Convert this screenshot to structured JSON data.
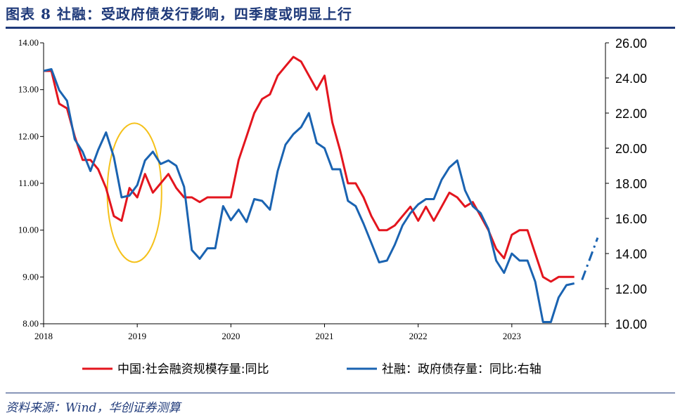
{
  "header": {
    "title": "图表 8   社融：受政府债发行影响，四季度或明显上行"
  },
  "footer": {
    "source": "资料来源：Wind，华创证券测算"
  },
  "chart_data": {
    "type": "line",
    "title": "",
    "x_ticks": [
      "2018",
      "2019",
      "2020",
      "2021",
      "2022",
      "2023"
    ],
    "y_left": {
      "ticks": [
        "8.00",
        "9.00",
        "10.00",
        "11.00",
        "12.00",
        "13.00",
        "14.00"
      ],
      "ylim": [
        8,
        14
      ]
    },
    "y_right": {
      "ticks": [
        "10.00",
        "12.00",
        "14.00",
        "16.00",
        "18.00",
        "20.00",
        "22.00",
        "24.00",
        "26.00"
      ],
      "ylim": [
        10,
        26
      ]
    },
    "x_range": [
      2018.0,
      2024.0
    ],
    "grid": false,
    "legend_position": "bottom",
    "colors": {
      "red": "#e3151e",
      "blue": "#1a63b1",
      "ellipse": "#f5c11a",
      "axis": "#000000"
    },
    "series": [
      {
        "name": "中国:社会融资规模存量:同比",
        "axis": "left",
        "color": "#e3151e",
        "x": [
          2018.0,
          2018.083,
          2018.167,
          2018.25,
          2018.333,
          2018.417,
          2018.5,
          2018.583,
          2018.667,
          2018.75,
          2018.833,
          2018.917,
          2019.0,
          2019.083,
          2019.167,
          2019.25,
          2019.333,
          2019.417,
          2019.5,
          2019.583,
          2019.667,
          2019.75,
          2019.833,
          2019.917,
          2020.0,
          2020.083,
          2020.167,
          2020.25,
          2020.333,
          2020.417,
          2020.5,
          2020.583,
          2020.667,
          2020.75,
          2020.833,
          2020.917,
          2021.0,
          2021.083,
          2021.167,
          2021.25,
          2021.333,
          2021.417,
          2021.5,
          2021.583,
          2021.667,
          2021.75,
          2021.833,
          2021.917,
          2022.0,
          2022.083,
          2022.167,
          2022.25,
          2022.333,
          2022.417,
          2022.5,
          2022.583,
          2022.667,
          2022.75,
          2022.833,
          2022.917,
          2023.0,
          2023.083,
          2023.167,
          2023.25,
          2023.333,
          2023.417,
          2023.5,
          2023.583,
          2023.667
        ],
        "values": [
          13.4,
          13.4,
          12.7,
          12.6,
          12.0,
          11.5,
          11.5,
          11.3,
          10.9,
          10.3,
          10.2,
          10.9,
          10.7,
          11.2,
          10.8,
          11.0,
          11.2,
          10.9,
          10.7,
          10.7,
          10.6,
          10.7,
          10.7,
          10.7,
          10.7,
          11.5,
          12.0,
          12.5,
          12.8,
          12.9,
          13.3,
          13.5,
          13.7,
          13.6,
          13.3,
          13.0,
          13.3,
          12.3,
          11.7,
          11.0,
          11.0,
          10.7,
          10.3,
          10.0,
          10.0,
          10.1,
          10.3,
          10.5,
          10.2,
          10.5,
          10.2,
          10.5,
          10.8,
          10.7,
          10.5,
          10.6,
          10.3,
          10.0,
          9.6,
          9.4,
          9.9,
          10.0,
          10.0,
          9.5,
          9.0,
          8.9,
          9.0,
          9.0,
          9.0
        ]
      },
      {
        "name": "社融：政府债存量：同比:右轴",
        "axis": "right",
        "color": "#1a63b1",
        "x": [
          2018.0,
          2018.083,
          2018.167,
          2018.25,
          2018.333,
          2018.417,
          2018.5,
          2018.583,
          2018.667,
          2018.75,
          2018.833,
          2018.917,
          2019.0,
          2019.083,
          2019.167,
          2019.25,
          2019.333,
          2019.417,
          2019.5,
          2019.583,
          2019.667,
          2019.75,
          2019.833,
          2019.917,
          2020.0,
          2020.083,
          2020.167,
          2020.25,
          2020.333,
          2020.417,
          2020.5,
          2020.583,
          2020.667,
          2020.75,
          2020.833,
          2020.917,
          2021.0,
          2021.083,
          2021.167,
          2021.25,
          2021.333,
          2021.417,
          2021.5,
          2021.583,
          2021.667,
          2021.75,
          2021.833,
          2021.917,
          2022.0,
          2022.083,
          2022.167,
          2022.25,
          2022.333,
          2022.417,
          2022.5,
          2022.583,
          2022.667,
          2022.75,
          2022.833,
          2022.917,
          2023.0,
          2023.083,
          2023.167,
          2023.25,
          2023.333,
          2023.417,
          2023.5,
          2023.583,
          2023.667
        ],
        "values": [
          24.4,
          24.5,
          23.3,
          22.7,
          20.5,
          19.8,
          18.7,
          19.9,
          20.9,
          19.5,
          17.2,
          17.3,
          17.9,
          19.3,
          19.8,
          19.1,
          19.3,
          19.0,
          17.8,
          14.2,
          13.7,
          14.3,
          14.3,
          16.7,
          15.9,
          16.5,
          15.8,
          17.1,
          17.0,
          16.5,
          18.7,
          20.2,
          20.8,
          21.2,
          22.0,
          20.3,
          20.0,
          18.8,
          18.8,
          17.0,
          16.7,
          15.7,
          14.6,
          13.5,
          13.6,
          14.5,
          15.6,
          16.3,
          16.8,
          17.1,
          17.1,
          18.2,
          18.9,
          19.3,
          17.6,
          16.7,
          16.3,
          15.4,
          13.6,
          12.9,
          14.0,
          13.6,
          13.6,
          12.4,
          10.1,
          10.1,
          11.5,
          12.2,
          12.3
        ],
        "projection": {
          "x": [
            2023.75,
            2023.917
          ],
          "values": [
            12.5,
            14.9
          ],
          "style": "dash-dot"
        }
      }
    ],
    "annotation": {
      "shape": "ellipse",
      "color": "#f5c11a",
      "center_x": 2018.97,
      "center_y_left": 10.8,
      "rx_years": 0.29,
      "ry_left": 2.2
    }
  }
}
